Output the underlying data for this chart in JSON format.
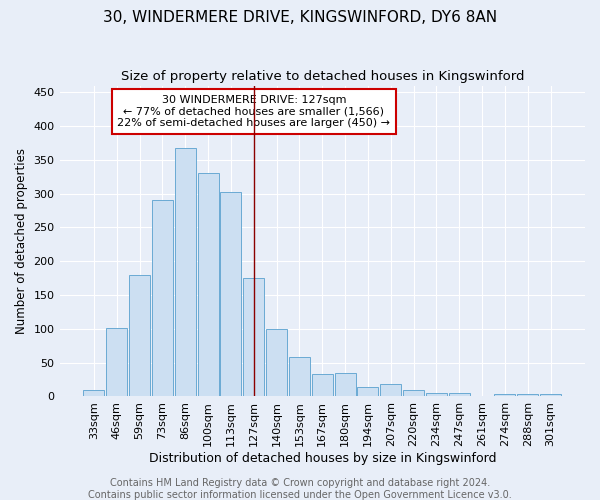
{
  "title": "30, WINDERMERE DRIVE, KINGSWINFORD, DY6 8AN",
  "subtitle": "Size of property relative to detached houses in Kingswinford",
  "xlabel": "Distribution of detached houses by size in Kingswinford",
  "ylabel": "Number of detached properties",
  "footer_line1": "Contains HM Land Registry data © Crown copyright and database right 2024.",
  "footer_line2": "Contains public sector information licensed under the Open Government Licence v3.0.",
  "categories": [
    "33sqm",
    "46sqm",
    "59sqm",
    "73sqm",
    "86sqm",
    "100sqm",
    "113sqm",
    "127sqm",
    "140sqm",
    "153sqm",
    "167sqm",
    "180sqm",
    "194sqm",
    "207sqm",
    "220sqm",
    "234sqm",
    "247sqm",
    "261sqm",
    "274sqm",
    "288sqm",
    "301sqm"
  ],
  "values": [
    9,
    102,
    180,
    290,
    367,
    330,
    302,
    175,
    100,
    58,
    33,
    35,
    14,
    19,
    10,
    5,
    5,
    0,
    4,
    3,
    3
  ],
  "bar_color": "#ccdff2",
  "bar_edge_color": "#6aaad4",
  "highlight_index": 7,
  "highlight_line_color": "#8b0000",
  "annotation_line1": "30 WINDERMERE DRIVE: 127sqm",
  "annotation_line2": "← 77% of detached houses are smaller (1,566)",
  "annotation_line3": "22% of semi-detached houses are larger (450) →",
  "annotation_box_color": "#ffffff",
  "annotation_box_edge_color": "#cc0000",
  "ylim": [
    0,
    460
  ],
  "yticks": [
    0,
    50,
    100,
    150,
    200,
    250,
    300,
    350,
    400,
    450
  ],
  "background_color": "#e8eef8",
  "grid_color": "#ffffff",
  "title_fontsize": 11,
  "subtitle_fontsize": 9.5,
  "xlabel_fontsize": 9,
  "ylabel_fontsize": 8.5,
  "tick_fontsize": 8,
  "annotation_fontsize": 8,
  "footer_fontsize": 7
}
